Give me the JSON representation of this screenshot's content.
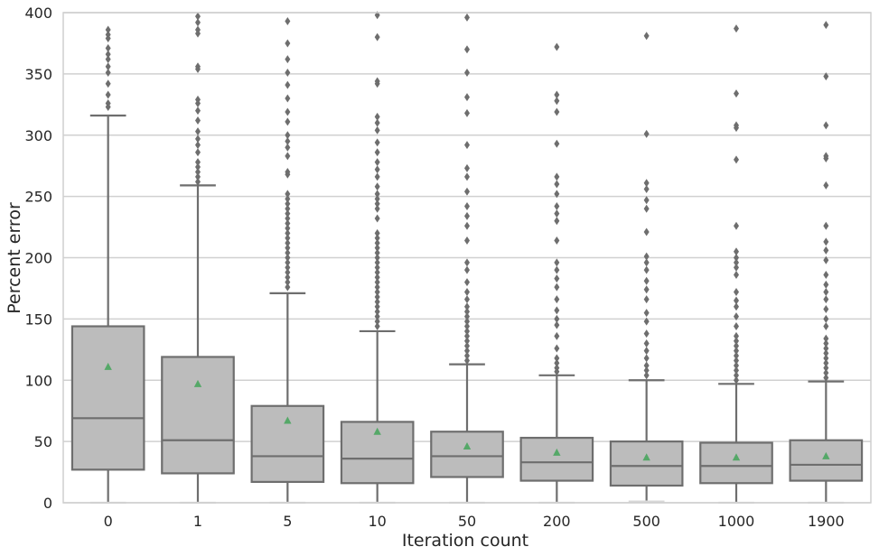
{
  "chart_data": {
    "type": "box",
    "title": "",
    "xlabel": "Iteration count",
    "ylabel": "Percent error",
    "ylim": [
      0,
      400
    ],
    "yticks": [
      0,
      50,
      100,
      150,
      200,
      250,
      300,
      350,
      400
    ],
    "grid": "horizontal",
    "categories": [
      "0",
      "1",
      "5",
      "10",
      "50",
      "200",
      "500",
      "1000",
      "1900"
    ],
    "boxes": [
      {
        "q1": 27,
        "median": 69,
        "q3": 144,
        "whisker_low": 0,
        "whisker_high": 316,
        "mean": 111,
        "outliers": [
          323,
          326,
          333,
          342,
          351,
          356,
          362,
          366,
          371,
          379,
          382,
          386
        ]
      },
      {
        "q1": 24,
        "median": 51,
        "q3": 119,
        "whisker_low": 0,
        "whisker_high": 259,
        "mean": 97,
        "outliers": [
          262,
          266,
          270,
          274,
          278,
          286,
          292,
          297,
          303,
          312,
          320,
          326,
          329,
          354,
          356,
          383,
          386,
          392,
          397
        ]
      },
      {
        "q1": 17,
        "median": 38,
        "q3": 79,
        "whisker_low": 0,
        "whisker_high": 171,
        "mean": 67,
        "outliers": [
          176,
          180,
          184,
          188,
          192,
          196,
          200,
          204,
          208,
          212,
          216,
          220,
          224,
          228,
          232,
          236,
          240,
          244,
          248,
          252,
          268,
          270,
          283,
          290,
          295,
          300,
          311,
          319,
          330,
          341,
          351,
          362,
          375,
          393
        ]
      },
      {
        "q1": 16,
        "median": 36,
        "q3": 66,
        "whisker_low": 0,
        "whisker_high": 140,
        "mean": 58,
        "outliers": [
          144,
          148,
          152,
          156,
          160,
          164,
          168,
          172,
          176,
          180,
          184,
          188,
          192,
          196,
          200,
          204,
          208,
          212,
          216,
          220,
          232,
          240,
          244,
          248,
          252,
          258,
          266,
          272,
          278,
          286,
          294,
          304,
          310,
          315,
          342,
          344,
          380,
          398
        ]
      },
      {
        "q1": 21,
        "median": 38,
        "q3": 58,
        "whisker_low": 0,
        "whisker_high": 113,
        "mean": 46,
        "outliers": [
          116,
          120,
          124,
          128,
          132,
          136,
          140,
          144,
          148,
          152,
          156,
          160,
          166,
          172,
          180,
          190,
          196,
          214,
          226,
          234,
          242,
          254,
          266,
          273,
          292,
          318,
          331,
          351,
          370,
          396
        ]
      },
      {
        "q1": 18,
        "median": 33,
        "q3": 53,
        "whisker_low": 0,
        "whisker_high": 104,
        "mean": 41,
        "outliers": [
          107,
          110,
          114,
          118,
          126,
          136,
          145,
          150,
          157,
          166,
          176,
          183,
          190,
          196,
          214,
          230,
          236,
          242,
          252,
          260,
          266,
          293,
          319,
          328,
          333,
          372
        ]
      },
      {
        "q1": 14,
        "median": 30,
        "q3": 50,
        "whisker_low": 1,
        "whisker_high": 100,
        "mean": 37,
        "outliers": [
          104,
          108,
          112,
          118,
          124,
          130,
          138,
          148,
          155,
          166,
          174,
          181,
          190,
          196,
          201,
          221,
          240,
          247,
          256,
          261,
          301,
          381
        ]
      },
      {
        "q1": 16,
        "median": 30,
        "q3": 49,
        "whisker_low": 0,
        "whisker_high": 97,
        "mean": 37,
        "outliers": [
          100,
          104,
          108,
          112,
          116,
          120,
          124,
          128,
          132,
          136,
          144,
          152,
          160,
          165,
          172,
          186,
          192,
          196,
          200,
          205,
          226,
          280,
          306,
          308,
          334,
          387
        ]
      },
      {
        "q1": 18,
        "median": 31,
        "q3": 51,
        "whisker_low": 0,
        "whisker_high": 99,
        "mean": 38,
        "outliers": [
          102,
          106,
          110,
          114,
          118,
          122,
          126,
          130,
          134,
          144,
          150,
          158,
          166,
          172,
          178,
          186,
          198,
          206,
          213,
          226,
          259,
          281,
          283,
          308,
          348,
          390
        ]
      }
    ],
    "colors": {
      "box_fill": "#bcbcbc",
      "line": "#6e6e6e",
      "mean_marker": "#55a868",
      "grid": "#d0d0d0",
      "spine": "#cfcfcf"
    }
  }
}
